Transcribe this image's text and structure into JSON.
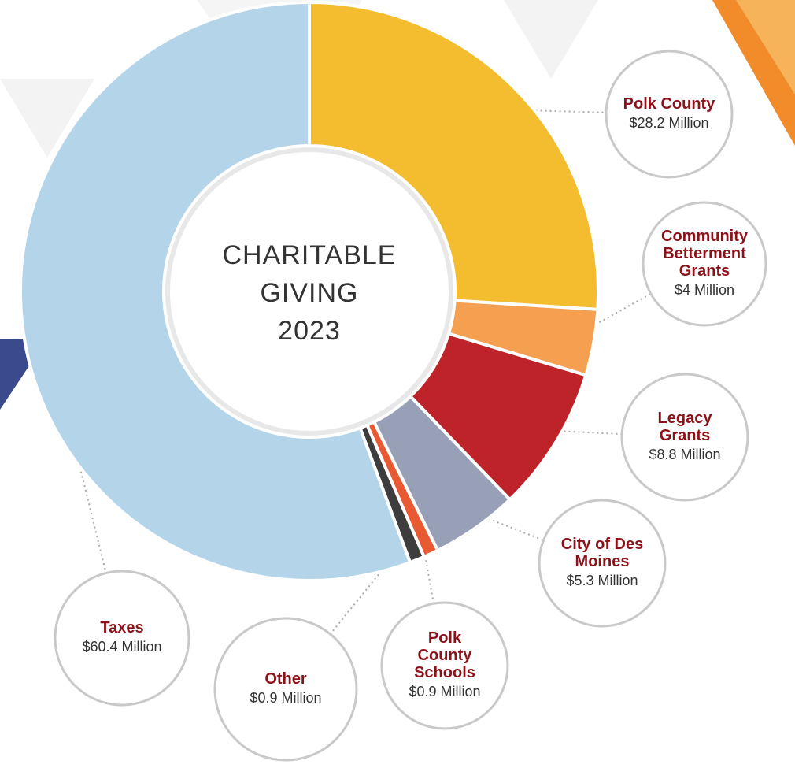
{
  "chart_data": {
    "type": "pie",
    "title": "CHARITABLE GIVING 2023",
    "categories": [
      "Polk County",
      "Community Betterment Grants",
      "Legacy Grants",
      "City of Des Moines",
      "Polk County Schools",
      "Other",
      "Taxes"
    ],
    "values": [
      28.2,
      4,
      8.8,
      5.3,
      0.9,
      0.9,
      60.4
    ],
    "value_labels": [
      "$28.2 Million",
      "$4 Million",
      "$8.8 Million",
      "$5.3 Million",
      "$0.9 Million",
      "$0.9 Million",
      "$60.4 Million"
    ],
    "colors": [
      "#f4bd2f",
      "#f59f51",
      "#be2329",
      "#98a0b8",
      "#e85a32",
      "#3d3d3d",
      "#b4d4ea"
    ]
  }
}
